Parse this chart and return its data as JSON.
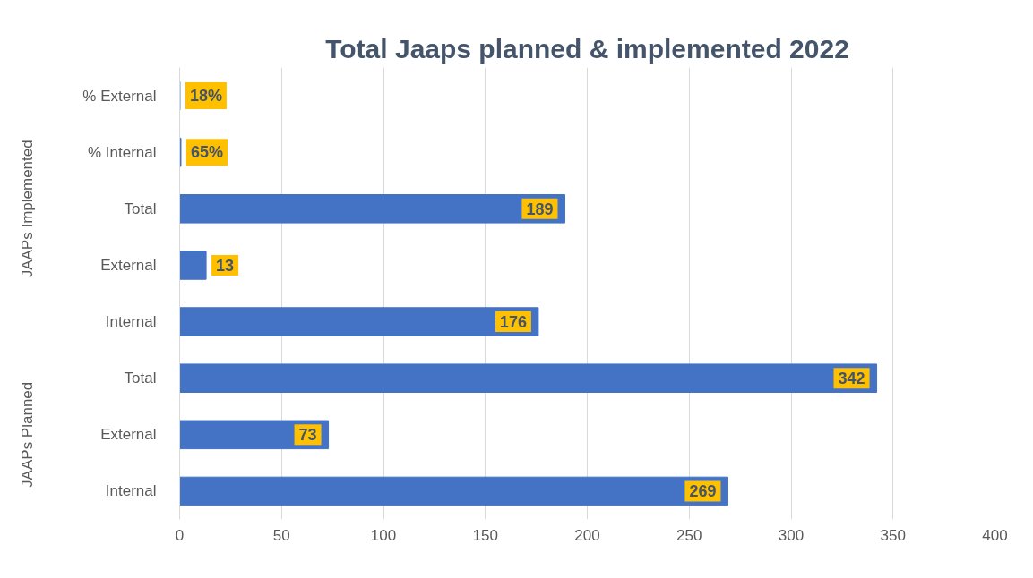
{
  "chart_data": {
    "type": "bar",
    "orientation": "horizontal",
    "title": "Total Jaaps planned & implemented 2022",
    "categories": [
      "% External",
      "% Internal",
      "Total",
      "External",
      "Internal",
      "Total",
      "External",
      "Internal"
    ],
    "values": [
      0.18,
      0.65,
      189,
      13,
      176,
      342,
      73,
      269
    ],
    "value_labels": [
      "18%",
      "65%",
      "189",
      "13",
      "176",
      "342",
      "73",
      "269"
    ],
    "color": "#4472c4",
    "xlim": [
      0,
      400
    ],
    "xticks": [
      0,
      50,
      100,
      150,
      200,
      250,
      300,
      350,
      400
    ],
    "grid": "x",
    "annotations": [
      "JAAPs Implemented",
      "JAAPs Planned"
    ]
  }
}
